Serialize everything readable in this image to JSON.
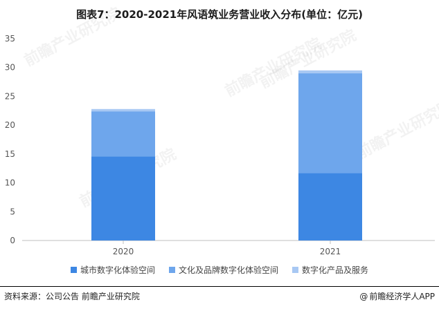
{
  "title": "图表7：2020-2021年风语筑业务营业收入分布(单位：亿元)",
  "source": "资料来源：公司公告 前瞻产业研究院",
  "credit_symbol": "@",
  "credit": "前瞻经济学人APP",
  "watermark": "前瞻产业研究院",
  "chart_data": {
    "type": "bar",
    "stacked": true,
    "title": "图表7：2020-2021年风语筑业务营业收入分布(单位：亿元)",
    "xlabel": "",
    "ylabel": "",
    "categories": [
      "2020",
      "2021"
    ],
    "ylim": [
      0,
      35
    ],
    "yticks": [
      0,
      5,
      10,
      15,
      20,
      25,
      30,
      35
    ],
    "grid": false,
    "legend_position": "bottom",
    "series": [
      {
        "name": "城市数字化体验空间",
        "color": "#3d87e3",
        "values": [
          14.6,
          11.7
        ]
      },
      {
        "name": "文化及品牌数字化体验空间",
        "color": "#6ea6ec",
        "values": [
          7.8,
          17.3
        ]
      },
      {
        "name": "数字化产品及服务",
        "color": "#a8c8f3",
        "values": [
          0.4,
          0.5
        ]
      }
    ]
  }
}
